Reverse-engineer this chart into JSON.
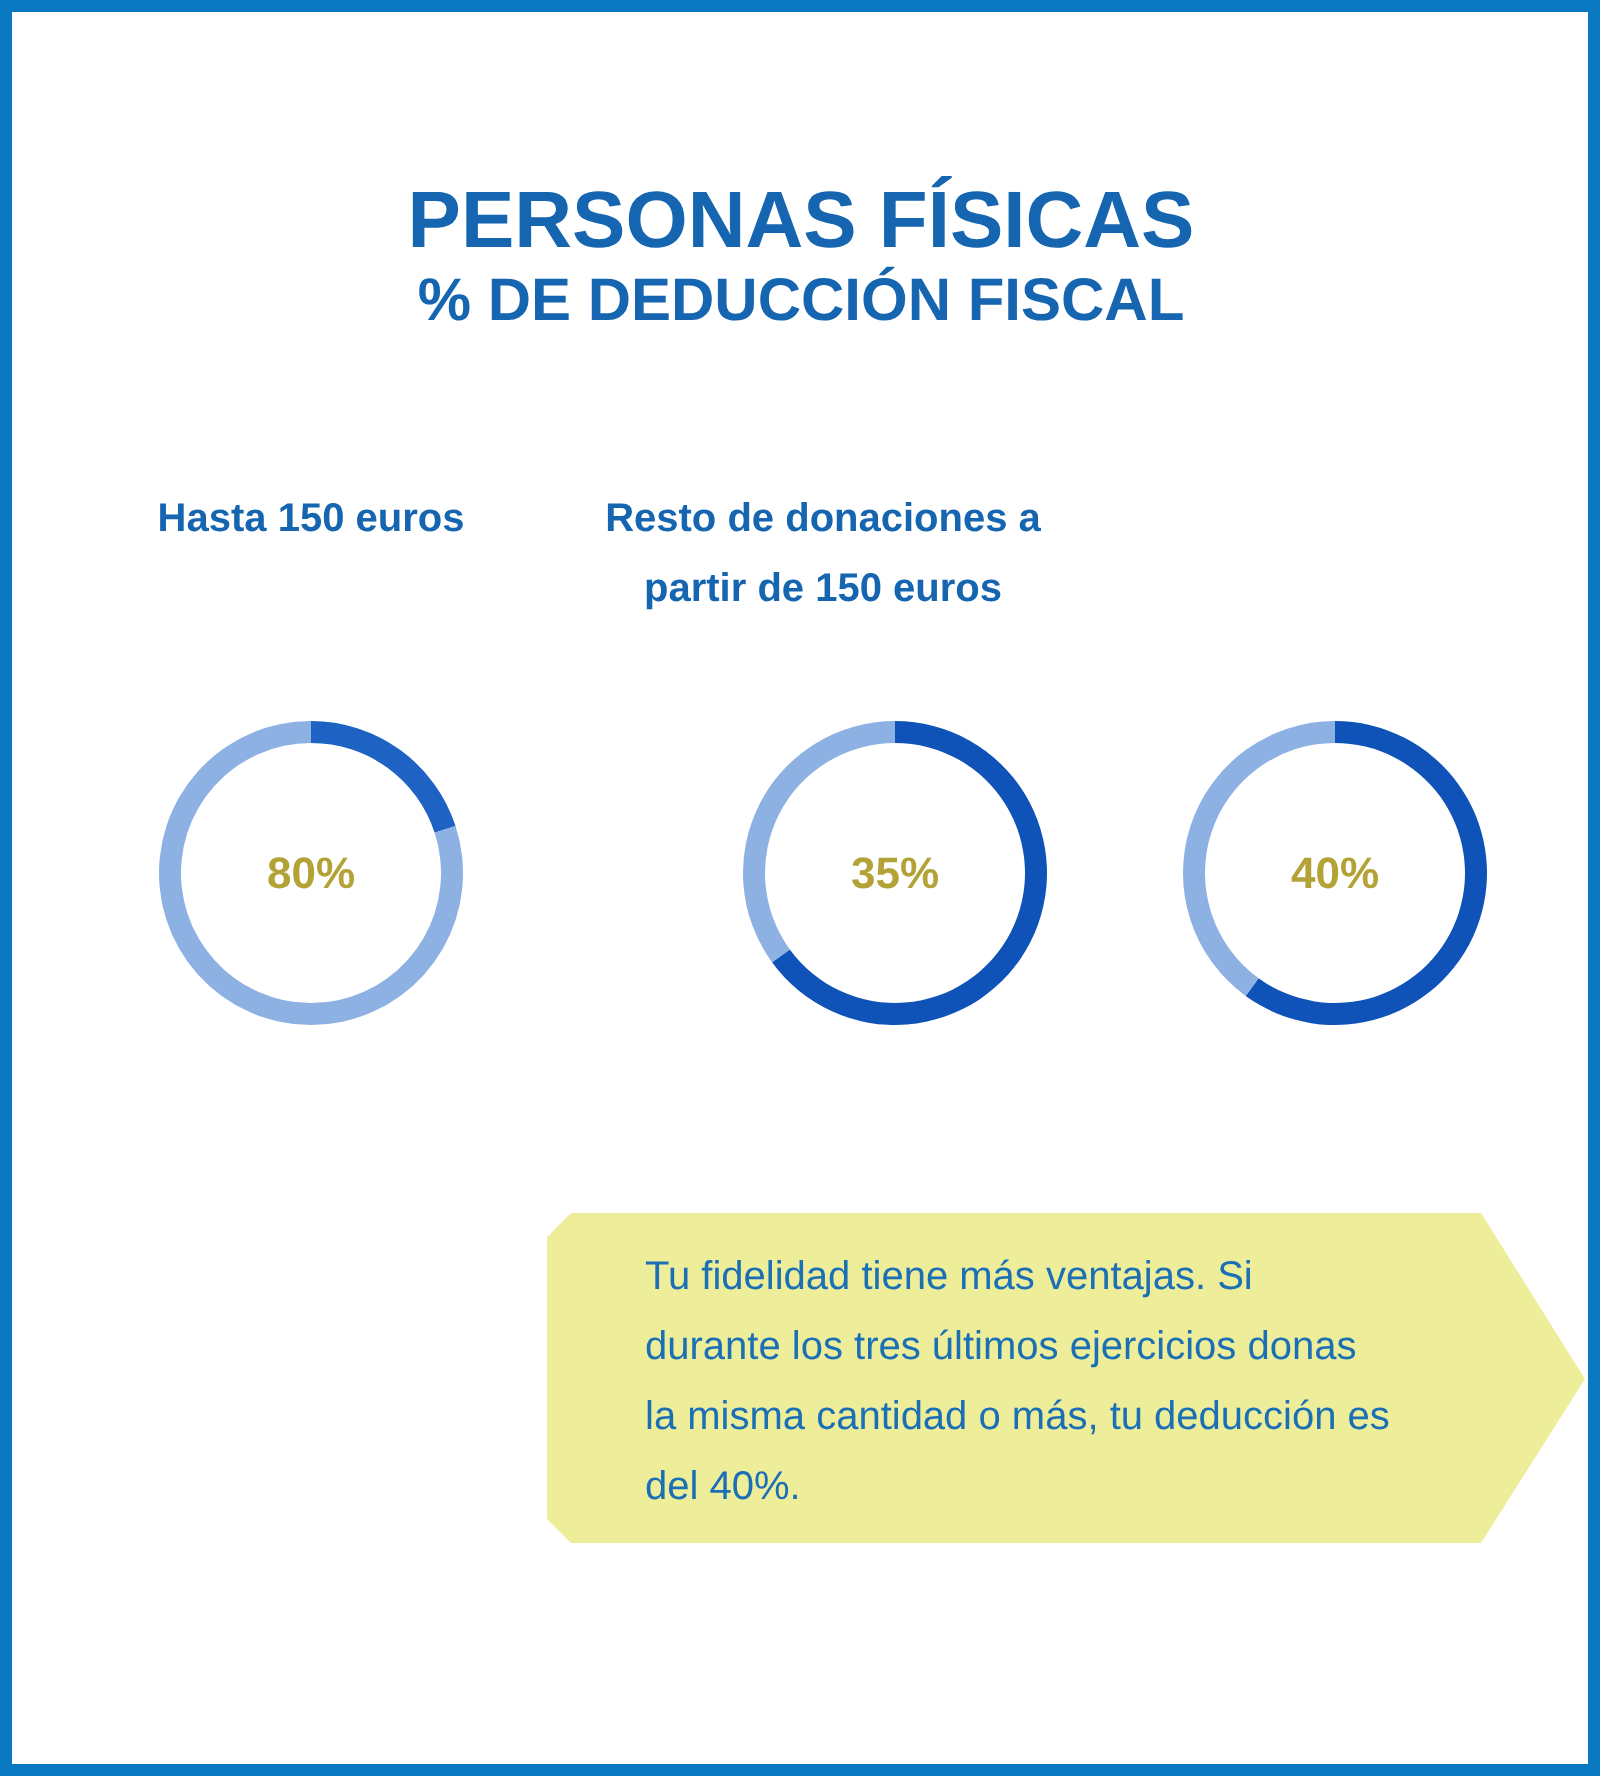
{
  "chart_data": [
    {
      "type": "other",
      "title": "PERSONAS FÍSICAS",
      "subtitle": "% DE DEDUCCIÓN FISCAL",
      "annotations": [
        "Tu fidelidad tiene más ventajas. Si durante los tres últimos ejercicios donas la misma cantidad o más, tu deducción es del 40%."
      ]
    },
    {
      "type": "donut",
      "subtitle": "Hasta 150 euros",
      "categories": [
        null,
        null
      ],
      "values": [
        20,
        80
      ],
      "colors": [
        "#1e63c4",
        "#8cb1e2"
      ],
      "annotations": [
        "80%"
      ]
    },
    {
      "type": "donut",
      "subtitle": "Resto de donaciones a partir de 150 euros",
      "categories": [
        null,
        null
      ],
      "values": [
        65,
        35
      ],
      "colors": [
        "#0f52b8",
        "#8cb1e2"
      ],
      "annotations": [
        "35%"
      ]
    },
    {
      "type": "donut",
      "categories": [
        null,
        null
      ],
      "values": [
        60,
        40
      ],
      "colors": [
        "#0f52b8",
        "#8cb1e2"
      ],
      "annotations": [
        "40%"
      ]
    }
  ]
}
